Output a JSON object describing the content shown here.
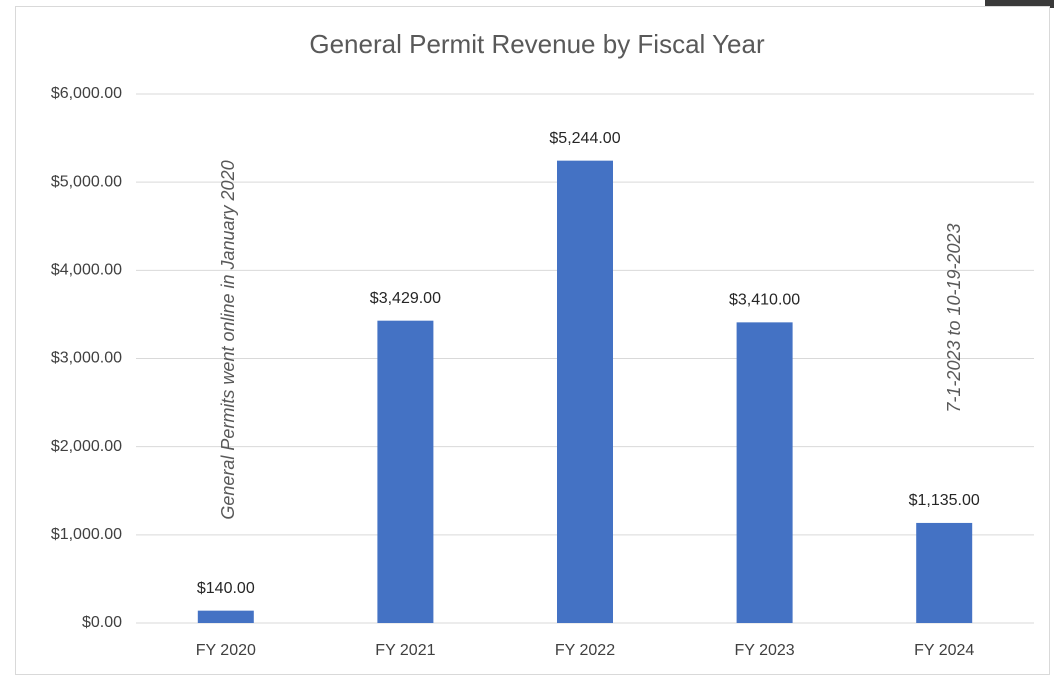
{
  "chart_data": {
    "type": "bar",
    "title": "General Permit Revenue by Fiscal Year",
    "categories": [
      "FY 2020",
      "FY 2021",
      "FY 2022",
      "FY 2023",
      "FY 2024"
    ],
    "values": [
      140,
      3429,
      5244,
      3410,
      1135
    ],
    "value_labels": [
      "$140.00",
      "$3,429.00",
      "$5,244.00",
      "$3,410.00",
      "$1,135.00"
    ],
    "color": "#4472c4",
    "ylim": [
      0,
      6000
    ],
    "yticks": [
      {
        "value": 0,
        "label": "$0.00"
      },
      {
        "value": 1000,
        "label": "$1,000.00"
      },
      {
        "value": 2000,
        "label": "$2,000.00"
      },
      {
        "value": 3000,
        "label": "$3,000.00"
      },
      {
        "value": 4000,
        "label": "$4,000.00"
      },
      {
        "value": 5000,
        "label": "$5,000.00"
      },
      {
        "value": 6000,
        "label": "$6,000.00"
      }
    ],
    "grid": true,
    "annotations": [
      "General Permits went online in January 2020",
      "7-1-2023 to 10-19-2023"
    ]
  }
}
